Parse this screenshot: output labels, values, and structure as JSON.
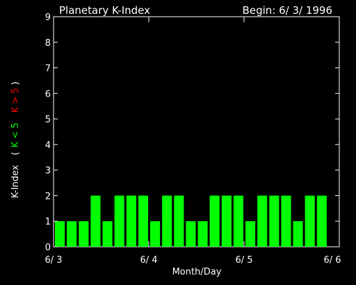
{
  "chart_data": {
    "type": "bar",
    "title": "Planetary K-Index",
    "subtitle": "Begin: 6/ 3/ 1996",
    "xlabel": "Month/Day",
    "ylabel": "K-Index",
    "legend": {
      "open": "(",
      "low": "K < 5",
      "high": "K > 5",
      "close": ")"
    },
    "ylim": [
      0,
      9
    ],
    "yticks": [
      "0",
      "1",
      "2",
      "3",
      "4",
      "5",
      "6",
      "7",
      "8",
      "9"
    ],
    "xlim": [
      0,
      3
    ],
    "xticks": [
      "6/ 3",
      "6/ 4",
      "6/ 5",
      "6/ 6"
    ],
    "values": [
      1,
      1,
      1,
      2,
      1,
      2,
      2,
      2,
      1,
      2,
      2,
      1,
      1,
      2,
      2,
      2,
      1,
      2,
      2,
      2,
      1,
      2,
      2
    ],
    "colors": {
      "low": "#00ff00",
      "high": "#ff0000",
      "axis": "#ffffff",
      "background": "#000000"
    }
  }
}
